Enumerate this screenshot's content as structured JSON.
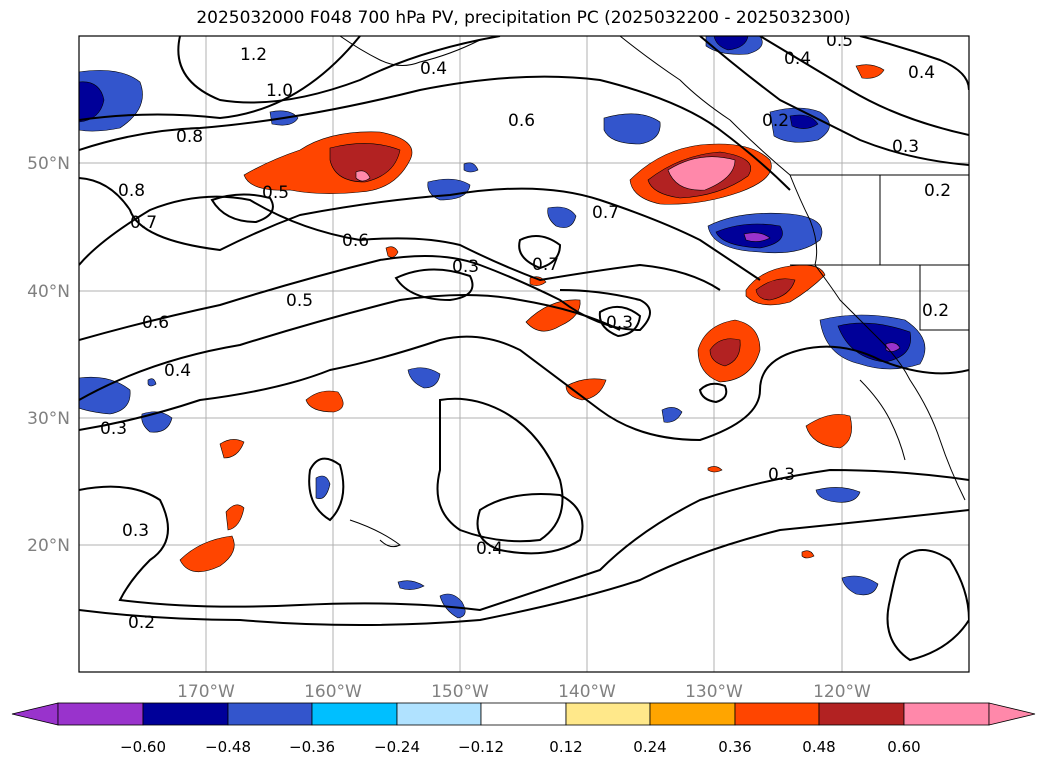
{
  "title": "2025032000 F048 700 hPa PV, precipitation PC (2025032200 - 2025032300)",
  "axes": {
    "lon_ticks": [
      "170°W",
      "160°W",
      "150°W",
      "140°W",
      "130°W",
      "120°W"
    ],
    "lat_ticks": [
      "50°N",
      "40°N",
      "30°N",
      "20°N"
    ],
    "tick_color": "#808080",
    "grid": true
  },
  "contour_labels": [
    "1.2",
    "1.0",
    "0.8",
    "0.8",
    "0.7",
    "0.6",
    "0.5",
    "0.6",
    "0.5",
    "0.4",
    "0.3",
    "0.3",
    "0.2",
    "0.4",
    "0.6",
    "0.7",
    "0.7",
    "0.3",
    "0.3",
    "0.4",
    "0.2",
    "0.3",
    "0.5",
    "0.4",
    "0.4",
    "0.3",
    "0.2",
    "0.2"
  ],
  "colorbar": {
    "ticks": [
      "−0.60",
      "−0.48",
      "−0.36",
      "−0.24",
      "−0.12",
      "0.12",
      "0.24",
      "0.36",
      "0.48",
      "0.60"
    ],
    "colors": [
      "#9933cc",
      "#000099",
      "#3355cc",
      "#00bfff",
      "#b0e2ff",
      "#ffffff",
      "#ffe88a",
      "#ffa500",
      "#ff4500",
      "#b22222",
      "#ff88aa"
    ]
  },
  "map_data": {
    "extent_lon": [
      -180,
      -110
    ],
    "extent_lat": [
      10,
      60
    ],
    "fields": [
      "700 hPa PV (contours)",
      "precipitation PC (shaded)"
    ]
  }
}
